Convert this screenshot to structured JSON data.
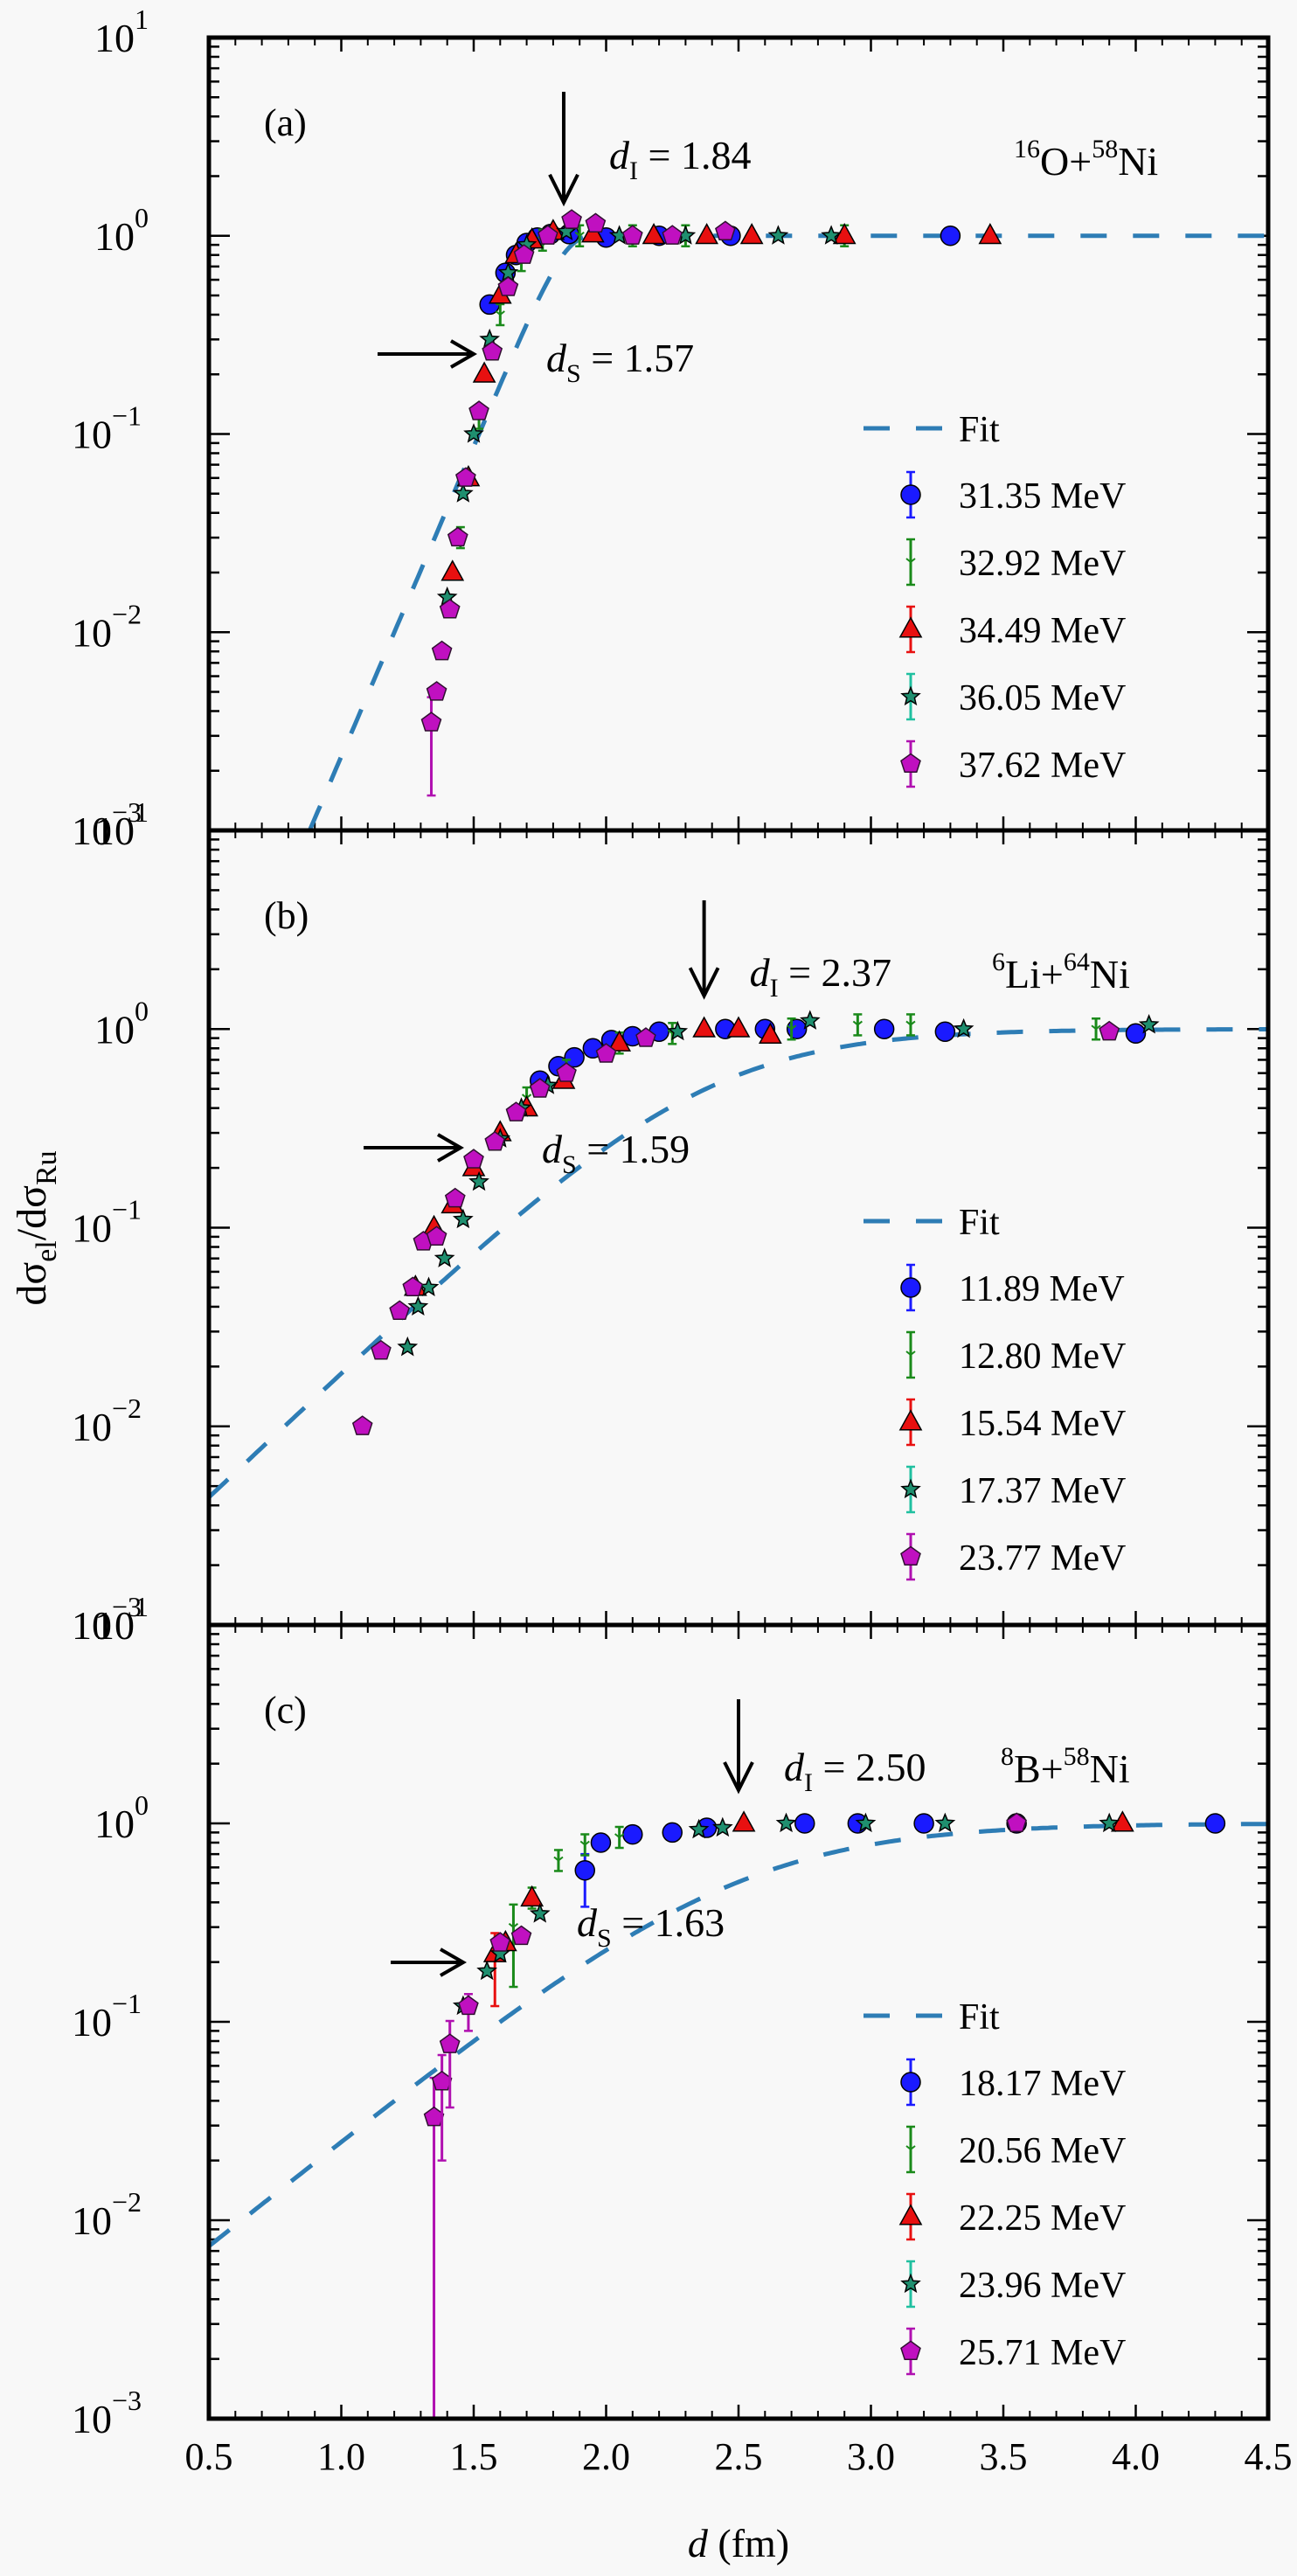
{
  "chart_data": {
    "type": "scatter",
    "xlabel": "d (fm)",
    "ylabel": "dσel/dσRu",
    "xlim": [
      0.5,
      4.5
    ],
    "ylim": [
      0.001,
      10
    ],
    "yscale": "log",
    "x_ticks": [
      "0.5",
      "1.0",
      "1.5",
      "2.0",
      "2.5",
      "3.0",
      "3.5",
      "4.0",
      "4.5"
    ],
    "x_tick_values": [
      0.5,
      1.0,
      1.5,
      2.0,
      2.5,
      3.0,
      3.5,
      4.0,
      4.5
    ],
    "y_ticks": [
      {
        "base": "10",
        "exp": "1",
        "value": 10
      },
      {
        "base": "10",
        "exp": "0",
        "value": 1
      },
      {
        "base": "10",
        "exp": "−1",
        "value": 0.1
      },
      {
        "base": "10",
        "exp": "−2",
        "value": 0.01
      },
      {
        "base": "10",
        "exp": "−3",
        "value": 0.001
      }
    ],
    "colors": {
      "fit": "#2e7db5",
      "blue": "#1a1aff",
      "green": "#1a8a1a",
      "red": "#e81010",
      "teal": "#20c0a0",
      "magenta": "#b010b0"
    },
    "panels": [
      {
        "label": "(a)",
        "system": {
          "a1": "16",
          "e1": "O",
          "a2": "58",
          "e2": "Ni"
        },
        "d_I": {
          "sym": "d",
          "sub": "I",
          "eq": "= 1.84",
          "value": 1.84
        },
        "d_S": {
          "sym": "d",
          "sub": "S",
          "eq": "= 1.57",
          "value": 1.57
        },
        "fit": {
          "d0": 1.84,
          "slope": 7.2,
          "width": 0.05
        },
        "legend": {
          "fit": "Fit",
          "entries": [
            "31.35 MeV",
            "32.92 MeV",
            "34.49 MeV",
            "36.05 MeV",
            "37.62 MeV"
          ]
        },
        "series": [
          {
            "name": "31.35 MeV",
            "marker": "circle",
            "color": "blue",
            "x": [
              1.56,
              1.62,
              1.66,
              1.7,
              1.74,
              1.79,
              1.86,
              2.0,
              2.2,
              2.47,
              3.3
            ],
            "y": [
              0.45,
              0.65,
              0.8,
              0.92,
              0.98,
              1.02,
              1.02,
              0.98,
              1.0,
              1.0,
              1.0
            ]
          },
          {
            "name": "32.92 MeV",
            "marker": "none",
            "color": "green",
            "x": [
              1.45,
              1.52,
              1.6,
              1.68,
              1.76,
              1.9,
              2.1,
              2.3,
              2.9
            ],
            "y": [
              0.03,
              0.12,
              0.4,
              0.75,
              0.95,
              1.0,
              1.0,
              1.0,
              1.0
            ]
          },
          {
            "name": "34.49 MeV",
            "marker": "triangle",
            "color": "red",
            "x": [
              1.42,
              1.48,
              1.54,
              1.6,
              1.66,
              1.72,
              1.8,
              1.95,
              2.18,
              2.38,
              2.55,
              2.9,
              3.45
            ],
            "y": [
              0.02,
              0.06,
              0.2,
              0.5,
              0.8,
              0.95,
              1.05,
              1.02,
              1.0,
              1.0,
              1.0,
              1.0,
              1.0
            ]
          },
          {
            "name": "36.05 MeV",
            "marker": "star",
            "color": "teal",
            "x": [
              1.4,
              1.46,
              1.5,
              1.56,
              1.63,
              1.7,
              1.85,
              2.05,
              2.3,
              2.65,
              2.85
            ],
            "y": [
              0.015,
              0.05,
              0.1,
              0.3,
              0.65,
              0.9,
              1.05,
              1.0,
              1.0,
              1.0,
              1.0
            ]
          },
          {
            "name": "37.62 MeV",
            "marker": "pentagon",
            "color": "magenta",
            "x": [
              1.34,
              1.36,
              1.38,
              1.41,
              1.44,
              1.47,
              1.52,
              1.57,
              1.63,
              1.69,
              1.78,
              1.87,
              1.96,
              2.1,
              2.25,
              2.45
            ],
            "y": [
              0.0035,
              0.005,
              0.008,
              0.013,
              0.03,
              0.06,
              0.13,
              0.26,
              0.55,
              0.8,
              1.0,
              1.2,
              1.15,
              1.0,
              1.0,
              1.05
            ],
            "yerr_low": [
              0.002,
              0,
              0,
              0,
              0,
              0,
              0,
              0,
              0,
              0,
              0,
              0,
              0,
              0,
              0,
              0
            ]
          }
        ]
      },
      {
        "label": "(b)",
        "system": {
          "a1": "6",
          "e1": "Li",
          "a2": "64",
          "e2": "Ni"
        },
        "d_I": {
          "sym": "d",
          "sub": "I",
          "eq": "= 2.37",
          "value": 2.37
        },
        "d_S": {
          "sym": "d",
          "sub": "S",
          "eq": "= 1.59",
          "value": 1.59
        },
        "fit": {
          "d0": 2.37,
          "slope": 2.9,
          "width": 0.35
        },
        "legend": {
          "fit": "Fit",
          "entries": [
            "11.89 MeV",
            "12.80 MeV",
            "15.54 MeV",
            "17.37 MeV",
            "23.77 MeV"
          ]
        },
        "series": [
          {
            "name": "11.89 MeV",
            "marker": "circle",
            "color": "blue",
            "x": [
              1.75,
              1.82,
              1.88,
              1.95,
              2.02,
              2.1,
              2.2,
              2.45,
              2.6,
              2.72,
              3.05,
              3.28,
              4.0
            ],
            "y": [
              0.55,
              0.65,
              0.72,
              0.8,
              0.88,
              0.92,
              0.97,
              1.0,
              1.0,
              1.0,
              1.0,
              0.97,
              0.95
            ]
          },
          {
            "name": "12.80 MeV",
            "marker": "none",
            "color": "green",
            "x": [
              1.7,
              1.85,
              2.05,
              2.25,
              2.7,
              2.95,
              3.15,
              3.85
            ],
            "y": [
              0.45,
              0.62,
              0.85,
              0.95,
              1.0,
              1.05,
              1.05,
              1.0
            ]
          },
          {
            "name": "15.54 MeV",
            "marker": "triangle",
            "color": "red",
            "x": [
              1.28,
              1.35,
              1.42,
              1.5,
              1.6,
              1.7,
              1.84,
              2.05,
              2.37,
              2.5,
              2.62
            ],
            "y": [
              0.05,
              0.1,
              0.13,
              0.2,
              0.3,
              0.4,
              0.55,
              0.85,
              1.0,
              1.0,
              0.93
            ]
          },
          {
            "name": "17.37 MeV",
            "marker": "star",
            "color": "teal",
            "x": [
              1.25,
              1.29,
              1.33,
              1.39,
              1.46,
              1.52,
              1.6,
              1.68,
              1.78,
              2.27,
              2.77,
              3.35,
              4.05
            ],
            "y": [
              0.025,
              0.04,
              0.05,
              0.07,
              0.11,
              0.17,
              0.28,
              0.4,
              0.52,
              0.97,
              1.1,
              1.0,
              1.05
            ]
          },
          {
            "name": "23.77 MeV",
            "marker": "pentagon",
            "color": "magenta",
            "x": [
              1.08,
              1.15,
              1.22,
              1.27,
              1.31,
              1.36,
              1.43,
              1.5,
              1.58,
              1.66,
              1.75,
              1.85,
              2.0,
              2.15,
              3.9
            ],
            "y": [
              0.01,
              0.024,
              0.038,
              0.05,
              0.085,
              0.09,
              0.14,
              0.22,
              0.27,
              0.38,
              0.5,
              0.6,
              0.75,
              0.9,
              0.97
            ]
          }
        ]
      },
      {
        "label": "(c)",
        "system": {
          "a1": "8",
          "e1": "B",
          "a2": "58",
          "e2": "Ni"
        },
        "d_I": {
          "sym": "d",
          "sub": "I",
          "eq": "= 2.50",
          "value": 2.5
        },
        "d_S": {
          "sym": "d",
          "sub": "S",
          "eq": "= 1.63",
          "value": 1.63
        },
        "fit": {
          "d0": 2.5,
          "slope": 2.45,
          "width": 0.4
        },
        "legend": {
          "fit": "Fit",
          "entries": [
            "18.17 MeV",
            "20.56 MeV",
            "22.25 MeV",
            "23.96 MeV",
            "25.71 MeV"
          ]
        },
        "series": [
          {
            "name": "18.17 MeV",
            "marker": "circle",
            "color": "blue",
            "x": [
              1.92,
              1.98,
              2.1,
              2.25,
              2.38,
              2.75,
              2.95,
              3.2,
              3.55,
              4.3
            ],
            "y": [
              0.58,
              0.8,
              0.88,
              0.9,
              0.95,
              1.0,
              1.0,
              1.0,
              1.0,
              1.0
            ],
            "yerr_low": [
              0.2,
              0,
              0,
              0,
              0,
              0,
              0,
              0,
              0,
              0
            ]
          },
          {
            "name": "20.56 MeV",
            "marker": "none",
            "color": "green",
            "x": [
              1.65,
              1.72,
              1.82,
              1.92,
              2.05
            ],
            "y": [
              0.3,
              0.42,
              0.65,
              0.78,
              0.85
            ],
            "yerr_low": [
              0.15,
              0,
              0,
              0,
              0
            ]
          },
          {
            "name": "22.25 MeV",
            "marker": "triangle",
            "color": "red",
            "x": [
              1.58,
              1.62,
              1.72,
              2.52,
              3.95
            ],
            "y": [
              0.22,
              0.25,
              0.42,
              1.0,
              1.0
            ],
            "yerr_low": [
              0.1,
              0,
              0,
              0,
              0
            ]
          },
          {
            "name": "23.96 MeV",
            "marker": "star",
            "color": "teal",
            "x": [
              1.46,
              1.55,
              1.6,
              1.75,
              2.35,
              2.44,
              2.68,
              2.98,
              3.28,
              3.9
            ],
            "y": [
              0.12,
              0.18,
              0.22,
              0.35,
              0.93,
              0.95,
              1.0,
              1.0,
              1.0,
              1.0
            ]
          },
          {
            "name": "25.71 MeV",
            "marker": "pentagon",
            "color": "magenta",
            "x": [
              1.35,
              1.38,
              1.41,
              1.48,
              1.6,
              1.68,
              3.55
            ],
            "y": [
              0.033,
              0.05,
              0.077,
              0.12,
              0.25,
              0.27,
              1.0
            ],
            "yerr_low": [
              0.032,
              0.03,
              0.04,
              0.03,
              0,
              0,
              0
            ]
          }
        ]
      }
    ]
  }
}
